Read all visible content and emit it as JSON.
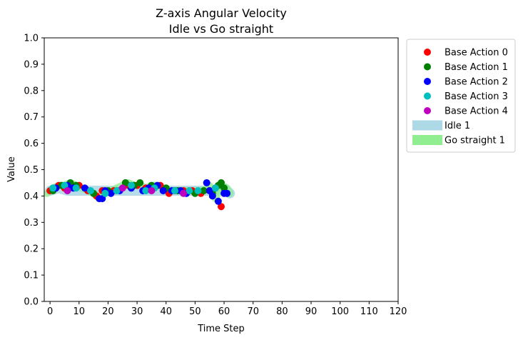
{
  "chart_data": {
    "type": "scatter",
    "title": "Z-axis Angular Velocity",
    "subtitle": "Idle vs Go straight",
    "xlabel": "Time Step",
    "ylabel": "Value",
    "xlim": [
      -2,
      120
    ],
    "ylim": [
      0,
      1
    ],
    "xticks": [
      0,
      10,
      20,
      30,
      40,
      50,
      60,
      70,
      80,
      90,
      100,
      110,
      120
    ],
    "yticks": [
      0.0,
      0.1,
      0.2,
      0.3,
      0.4,
      0.5,
      0.6,
      0.7,
      0.8,
      0.9,
      1.0
    ],
    "xtick_labels": [
      "0",
      "10",
      "20",
      "30",
      "40",
      "50",
      "60",
      "70",
      "80",
      "90",
      "100",
      "110",
      "120"
    ],
    "ytick_labels": [
      "0.0",
      "0.1",
      "0.2",
      "0.3",
      "0.4",
      "0.5",
      "0.6",
      "0.7",
      "0.8",
      "0.9",
      "1.0"
    ],
    "grid": false,
    "legend_position": "outside-right-top",
    "series": [
      {
        "name": "Base Action 0",
        "kind": "scatter",
        "color": "#ff0000",
        "points": [
          [
            0,
            0.42
          ],
          [
            3,
            0.44
          ],
          [
            5,
            0.43
          ],
          [
            10,
            0.44
          ],
          [
            13,
            0.42
          ],
          [
            16,
            0.4
          ],
          [
            18,
            0.42
          ],
          [
            22,
            0.42
          ],
          [
            27,
            0.44
          ],
          [
            30,
            0.44
          ],
          [
            33,
            0.43
          ],
          [
            38,
            0.44
          ],
          [
            41,
            0.41
          ],
          [
            43,
            0.42
          ],
          [
            46,
            0.42
          ],
          [
            49,
            0.42
          ],
          [
            52,
            0.41
          ],
          [
            55,
            0.42
          ],
          [
            57,
            0.43
          ],
          [
            59,
            0.36
          ]
        ]
      },
      {
        "name": "Base Action 1",
        "kind": "scatter",
        "color": "#008000",
        "points": [
          [
            1,
            0.42
          ],
          [
            4,
            0.44
          ],
          [
            7,
            0.45
          ],
          [
            9,
            0.44
          ],
          [
            15,
            0.41
          ],
          [
            20,
            0.42
          ],
          [
            26,
            0.45
          ],
          [
            29,
            0.44
          ],
          [
            31,
            0.45
          ],
          [
            35,
            0.44
          ],
          [
            40,
            0.43
          ],
          [
            44,
            0.42
          ],
          [
            50,
            0.41
          ],
          [
            53,
            0.42
          ],
          [
            56,
            0.41
          ],
          [
            58,
            0.44
          ],
          [
            59,
            0.45
          ],
          [
            60,
            0.43
          ]
        ]
      },
      {
        "name": "Base Action 2",
        "kind": "scatter",
        "color": "#0000ff",
        "points": [
          [
            2,
            0.43
          ],
          [
            6,
            0.44
          ],
          [
            8,
            0.43
          ],
          [
            12,
            0.43
          ],
          [
            17,
            0.39
          ],
          [
            18,
            0.39
          ],
          [
            19,
            0.42
          ],
          [
            21,
            0.41
          ],
          [
            24,
            0.42
          ],
          [
            28,
            0.43
          ],
          [
            32,
            0.42
          ],
          [
            34,
            0.43
          ],
          [
            37,
            0.44
          ],
          [
            39,
            0.42
          ],
          [
            42,
            0.42
          ],
          [
            45,
            0.42
          ],
          [
            47,
            0.41
          ],
          [
            54,
            0.45
          ],
          [
            55,
            0.42
          ],
          [
            56,
            0.4
          ],
          [
            58,
            0.38
          ],
          [
            60,
            0.41
          ],
          [
            61,
            0.41
          ]
        ]
      },
      {
        "name": "Base Action 3",
        "kind": "scatter",
        "color": "#00bfbf",
        "points": [
          [
            1,
            0.43
          ],
          [
            5,
            0.44
          ],
          [
            9,
            0.43
          ],
          [
            14,
            0.42
          ],
          [
            19,
            0.41
          ],
          [
            23,
            0.42
          ],
          [
            28,
            0.44
          ],
          [
            33,
            0.42
          ],
          [
            36,
            0.43
          ],
          [
            43,
            0.42
          ],
          [
            48,
            0.42
          ],
          [
            51,
            0.42
          ],
          [
            57,
            0.43
          ]
        ]
      },
      {
        "name": "Base Action 4",
        "kind": "scatter",
        "color": "#bf00bf",
        "points": [
          [
            6,
            0.42
          ],
          [
            25,
            0.43
          ],
          [
            35,
            0.42
          ],
          [
            46,
            0.41
          ]
        ]
      },
      {
        "name": "Idle 1",
        "kind": "band",
        "color": "#add8e6",
        "x": [
          0,
          3,
          6,
          9,
          12,
          15,
          18,
          21,
          24,
          27,
          30,
          33,
          36,
          39,
          42,
          45,
          48,
          51,
          54,
          57,
          60,
          62
        ],
        "y": [
          0.42,
          0.43,
          0.42,
          0.42,
          0.42,
          0.42,
          0.42,
          0.42,
          0.42,
          0.42,
          0.42,
          0.42,
          0.42,
          0.42,
          0.42,
          0.42,
          0.42,
          0.42,
          0.42,
          0.42,
          0.43,
          0.41
        ]
      },
      {
        "name": "Go straight 1",
        "kind": "band",
        "color": "#90ee90",
        "x": [
          -1,
          1,
          3,
          5,
          7,
          9,
          11,
          13,
          15,
          17,
          19,
          21,
          23,
          25,
          27,
          29,
          31,
          33,
          35,
          37,
          39,
          41,
          43,
          45,
          47,
          49,
          51,
          53,
          55,
          57,
          59,
          61,
          62
        ],
        "y": [
          0.41,
          0.43,
          0.44,
          0.44,
          0.45,
          0.44,
          0.43,
          0.42,
          0.41,
          0.39,
          0.41,
          0.42,
          0.43,
          0.44,
          0.45,
          0.44,
          0.44,
          0.43,
          0.44,
          0.44,
          0.43,
          0.42,
          0.42,
          0.42,
          0.42,
          0.42,
          0.42,
          0.42,
          0.44,
          0.39,
          0.44,
          0.43,
          0.41
        ]
      }
    ]
  }
}
